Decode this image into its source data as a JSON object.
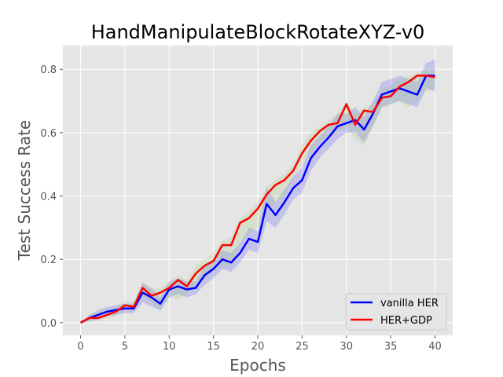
{
  "chart_data": {
    "type": "line",
    "title": "HandManipulateBlockRotateXYZ-v0",
    "xlabel": "Epochs",
    "ylabel": "Test Success Rate",
    "xlim": [
      -2,
      42
    ],
    "ylim": [
      -0.04,
      0.875
    ],
    "x_ticks": [
      0,
      5,
      10,
      15,
      20,
      25,
      30,
      35,
      40
    ],
    "x_tick_labels": [
      "0",
      "5",
      "10",
      "15",
      "20",
      "25",
      "30",
      "35",
      "40"
    ],
    "y_ticks": [
      0.0,
      0.2,
      0.4,
      0.6,
      0.8
    ],
    "y_tick_labels": [
      "0.0",
      "0.2",
      "0.4",
      "0.6",
      "0.8"
    ],
    "grid": true,
    "legend_position": "lower-right",
    "x": [
      0,
      1,
      2,
      3,
      4,
      5,
      6,
      7,
      8,
      9,
      10,
      11,
      12,
      13,
      14,
      15,
      16,
      17,
      18,
      19,
      20,
      21,
      22,
      23,
      24,
      25,
      26,
      27,
      28,
      29,
      30,
      31,
      32,
      33,
      34,
      35,
      36,
      37,
      38,
      39,
      40
    ],
    "series": [
      {
        "name": "vanilla HER",
        "color": "#0000ff",
        "band_color": "#0000ff",
        "values": [
          0.0,
          0.015,
          0.025,
          0.035,
          0.04,
          0.045,
          0.045,
          0.095,
          0.08,
          0.06,
          0.105,
          0.115,
          0.105,
          0.11,
          0.15,
          0.17,
          0.2,
          0.19,
          0.22,
          0.265,
          0.255,
          0.375,
          0.34,
          0.38,
          0.425,
          0.45,
          0.52,
          0.555,
          0.585,
          0.62,
          0.63,
          0.64,
          0.61,
          0.66,
          0.72,
          0.73,
          0.74,
          0.73,
          0.72,
          0.78,
          0.78
        ],
        "lower": [
          0.0,
          0.005,
          0.01,
          0.02,
          0.025,
          0.03,
          0.03,
          0.065,
          0.05,
          0.04,
          0.08,
          0.09,
          0.08,
          0.09,
          0.12,
          0.14,
          0.17,
          0.16,
          0.19,
          0.23,
          0.22,
          0.32,
          0.3,
          0.34,
          0.39,
          0.41,
          0.48,
          0.52,
          0.55,
          0.58,
          0.6,
          0.6,
          0.57,
          0.62,
          0.68,
          0.69,
          0.7,
          0.69,
          0.68,
          0.74,
          0.73
        ],
        "upper": [
          0.0,
          0.025,
          0.04,
          0.05,
          0.055,
          0.06,
          0.06,
          0.125,
          0.11,
          0.08,
          0.13,
          0.14,
          0.13,
          0.13,
          0.18,
          0.2,
          0.23,
          0.22,
          0.25,
          0.3,
          0.29,
          0.43,
          0.38,
          0.42,
          0.46,
          0.49,
          0.56,
          0.59,
          0.62,
          0.66,
          0.66,
          0.68,
          0.65,
          0.7,
          0.76,
          0.77,
          0.78,
          0.77,
          0.76,
          0.82,
          0.83
        ]
      },
      {
        "name": "HER+GDP",
        "color": "#ff0000",
        "band_color": "#7fbf3f",
        "values": [
          0.0,
          0.015,
          0.015,
          0.025,
          0.035,
          0.055,
          0.05,
          0.11,
          0.085,
          0.095,
          0.11,
          0.135,
          0.115,
          0.155,
          0.18,
          0.195,
          0.245,
          0.245,
          0.315,
          0.33,
          0.36,
          0.405,
          0.435,
          0.45,
          0.48,
          0.535,
          0.575,
          0.605,
          0.625,
          0.63,
          0.69,
          0.625,
          0.67,
          0.665,
          0.71,
          0.715,
          0.745,
          0.76,
          0.78,
          0.78,
          0.775
        ],
        "lower": [
          0.0,
          0.005,
          0.005,
          0.015,
          0.02,
          0.04,
          0.035,
          0.085,
          0.065,
          0.03,
          0.085,
          0.07,
          0.09,
          0.12,
          0.14,
          0.16,
          0.18,
          0.17,
          0.25,
          0.28,
          0.3,
          0.35,
          0.38,
          0.4,
          0.45,
          0.5,
          0.54,
          0.57,
          0.59,
          0.6,
          0.62,
          0.58,
          0.56,
          0.62,
          0.68,
          0.69,
          0.7,
          0.68,
          0.7,
          0.73,
          0.74
        ],
        "upper": [
          0.0,
          0.025,
          0.03,
          0.04,
          0.05,
          0.07,
          0.065,
          0.13,
          0.105,
          0.11,
          0.13,
          0.15,
          0.135,
          0.18,
          0.2,
          0.22,
          0.26,
          0.27,
          0.33,
          0.35,
          0.38,
          0.43,
          0.45,
          0.47,
          0.5,
          0.56,
          0.6,
          0.62,
          0.64,
          0.66,
          0.7,
          0.66,
          0.68,
          0.69,
          0.74,
          0.75,
          0.77,
          0.78,
          0.79,
          0.8,
          0.8
        ]
      }
    ]
  }
}
